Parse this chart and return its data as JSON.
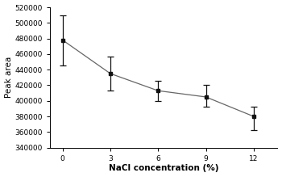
{
  "x": [
    0,
    3,
    6,
    9,
    12
  ],
  "y": [
    478000,
    435000,
    413000,
    405000,
    380000
  ],
  "yerr_upper": [
    32000,
    22000,
    13000,
    15000,
    13000
  ],
  "yerr_lower": [
    33000,
    22000,
    13000,
    12000,
    18000
  ],
  "xlabel": "NaCl concentration (%)",
  "ylabel": "Peak area",
  "xlim": [
    -0.8,
    13.5
  ],
  "ylim": [
    340000,
    520000
  ],
  "yticks": [
    340000,
    360000,
    380000,
    400000,
    420000,
    440000,
    460000,
    480000,
    500000,
    520000
  ],
  "xticks": [
    0,
    3,
    6,
    9,
    12
  ],
  "line_color": "#666666",
  "marker_color": "#111111",
  "background_color": "#ffffff",
  "font_size": 6.5,
  "label_font_size": 7.5
}
